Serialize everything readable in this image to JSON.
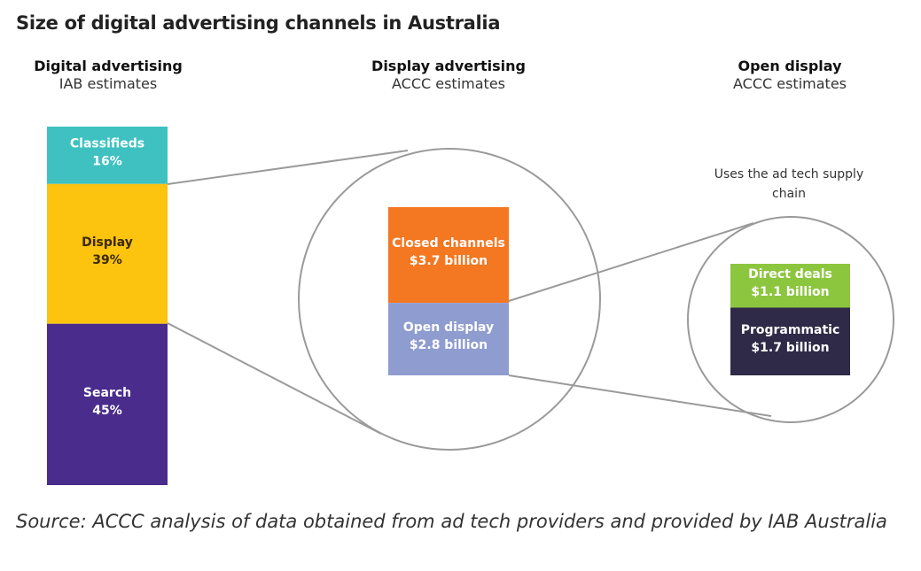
{
  "title": "Size of digital advertising channels in Australia",
  "columns": [
    {
      "heading": "Digital advertising",
      "subheading": "IAB estimates"
    },
    {
      "heading": "Display advertising",
      "subheading": "ACCC estimates"
    },
    {
      "heading": "Open display",
      "subheading": "ACCC estimates"
    }
  ],
  "digital_bar": [
    {
      "label": "Classifieds",
      "value": "16%",
      "share": 16,
      "color": "#3fc1c1"
    },
    {
      "label": "Display",
      "value": "39%",
      "share": 39,
      "color": "#fcc30f"
    },
    {
      "label": "Search",
      "value": "45%",
      "share": 45,
      "color": "#4a2c8c"
    }
  ],
  "display_bar": [
    {
      "label": "Closed channels",
      "value": "$3.7 billion",
      "amount": 3.7,
      "color": "#f47721"
    },
    {
      "label": "Open display",
      "value": "$2.8 billion",
      "amount": 2.8,
      "color": "#8e9ccf"
    }
  ],
  "open_display_note": "Uses the ad tech supply chain",
  "open_bar": [
    {
      "label": "Direct deals",
      "value": "$1.1 billion",
      "amount": 1.1,
      "color": "#8cc63f"
    },
    {
      "label": "Programmatic",
      "value": "$1.7 billion",
      "amount": 1.7,
      "color": "#2e2a47"
    }
  ],
  "source": "Source: ACCC analysis of data obtained from ad tech providers and provided by IAB Australia"
}
